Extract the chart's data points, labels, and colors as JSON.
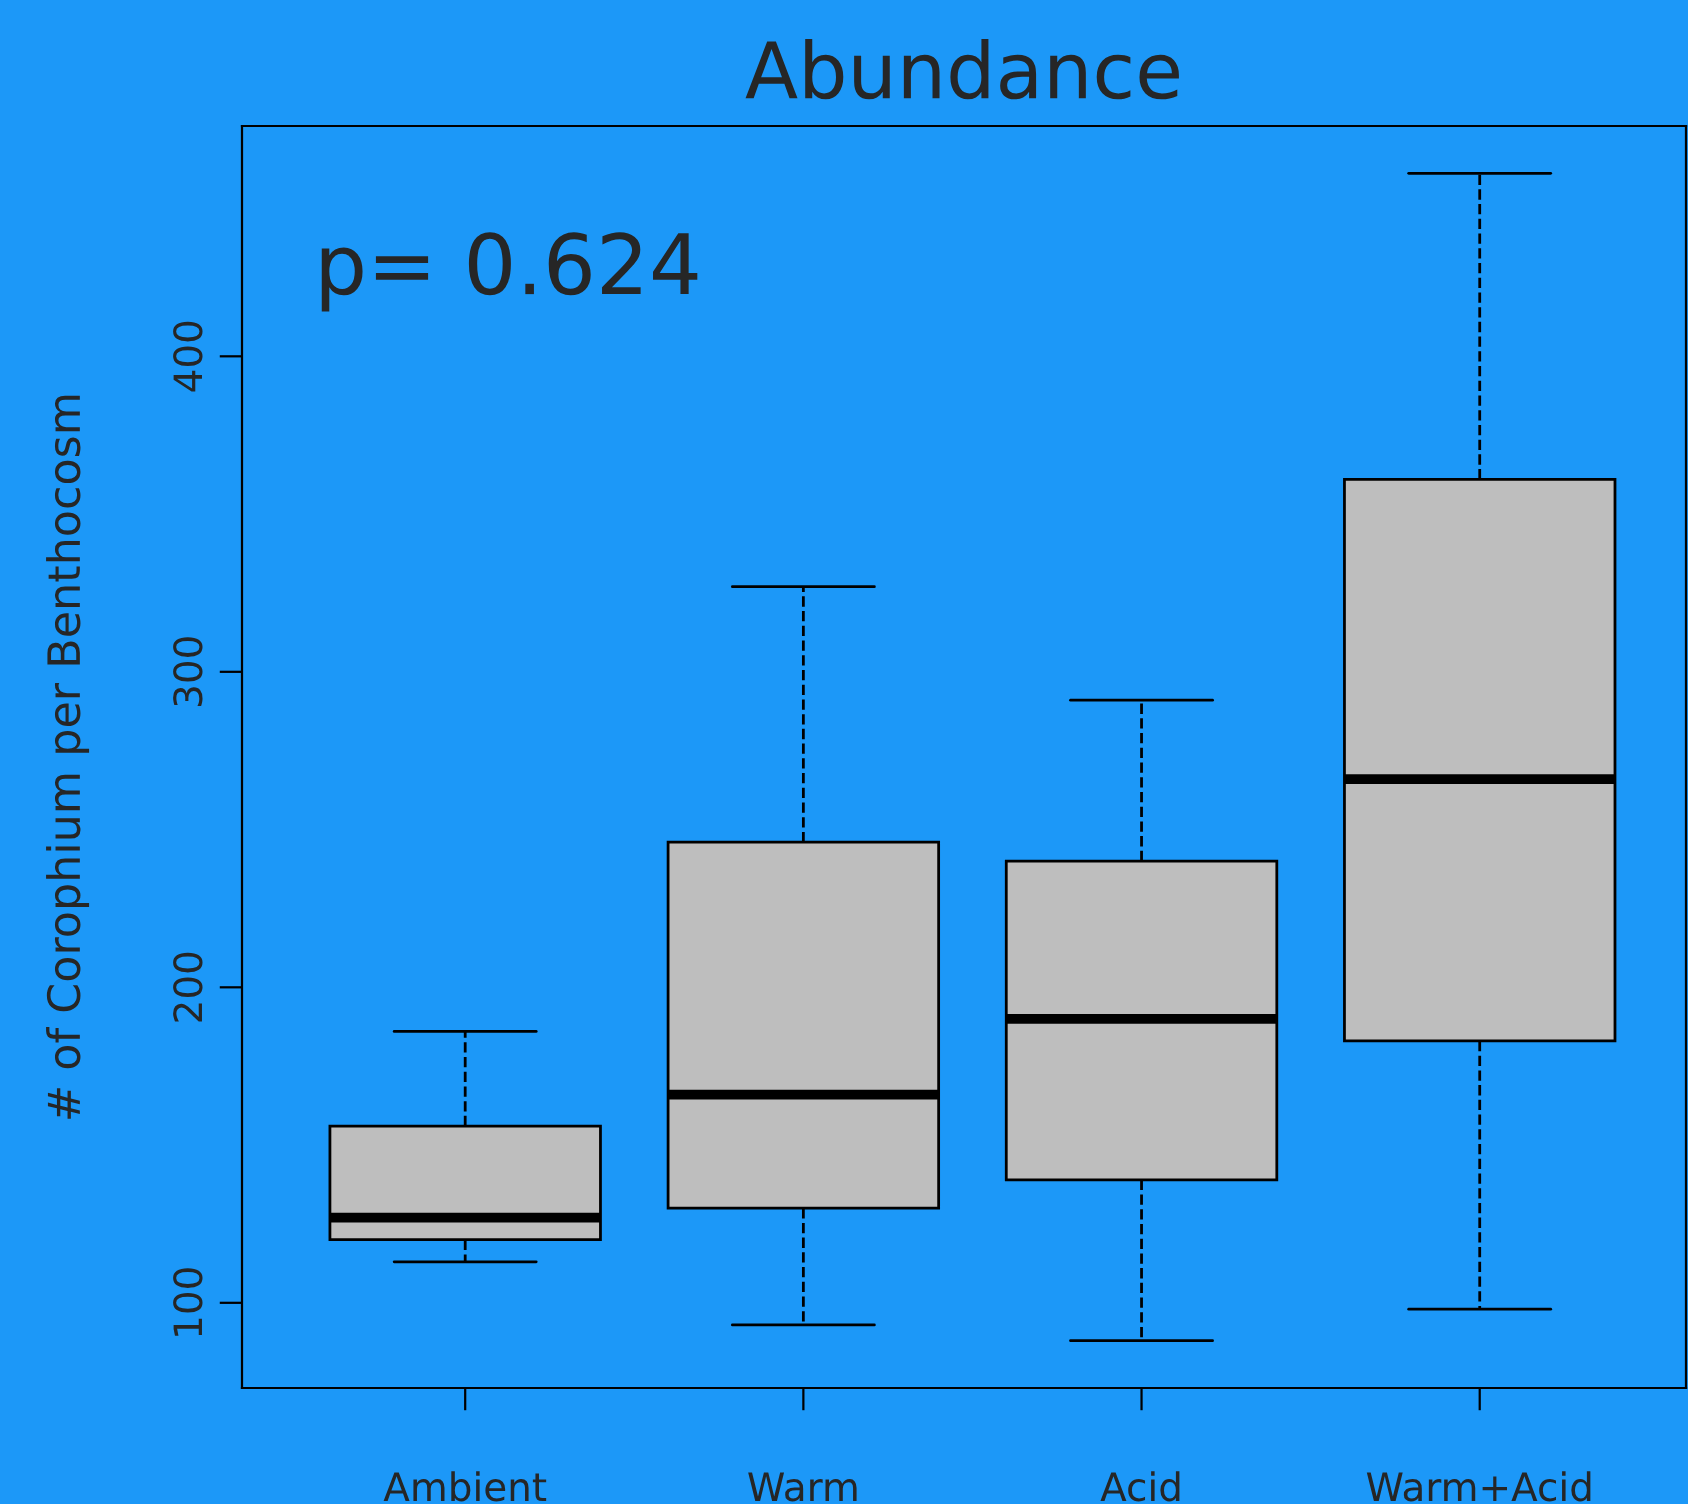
{
  "chart_data": {
    "type": "box",
    "title": "Abundance",
    "ylabel": "# of Corophium per Benthocosm",
    "categories": [
      "Ambient",
      "Warm",
      "Acid",
      "Warm+Acid"
    ],
    "boxes": [
      {
        "low": 113,
        "q1": 120,
        "median": 127,
        "q3": 156,
        "high": 186
      },
      {
        "low": 93,
        "q1": 130,
        "median": 166,
        "q3": 246,
        "high": 327
      },
      {
        "low": 88,
        "q1": 139,
        "median": 190,
        "q3": 240,
        "high": 291
      },
      {
        "low": 98,
        "q1": 183,
        "median": 266,
        "q3": 361,
        "high": 458
      }
    ],
    "color": "#bebebe",
    "ylim": [
      73,
      473
    ],
    "yticks": [
      100,
      200,
      300,
      400
    ],
    "grid": false,
    "legend": false,
    "annotations": [
      "p= 0.624"
    ]
  }
}
